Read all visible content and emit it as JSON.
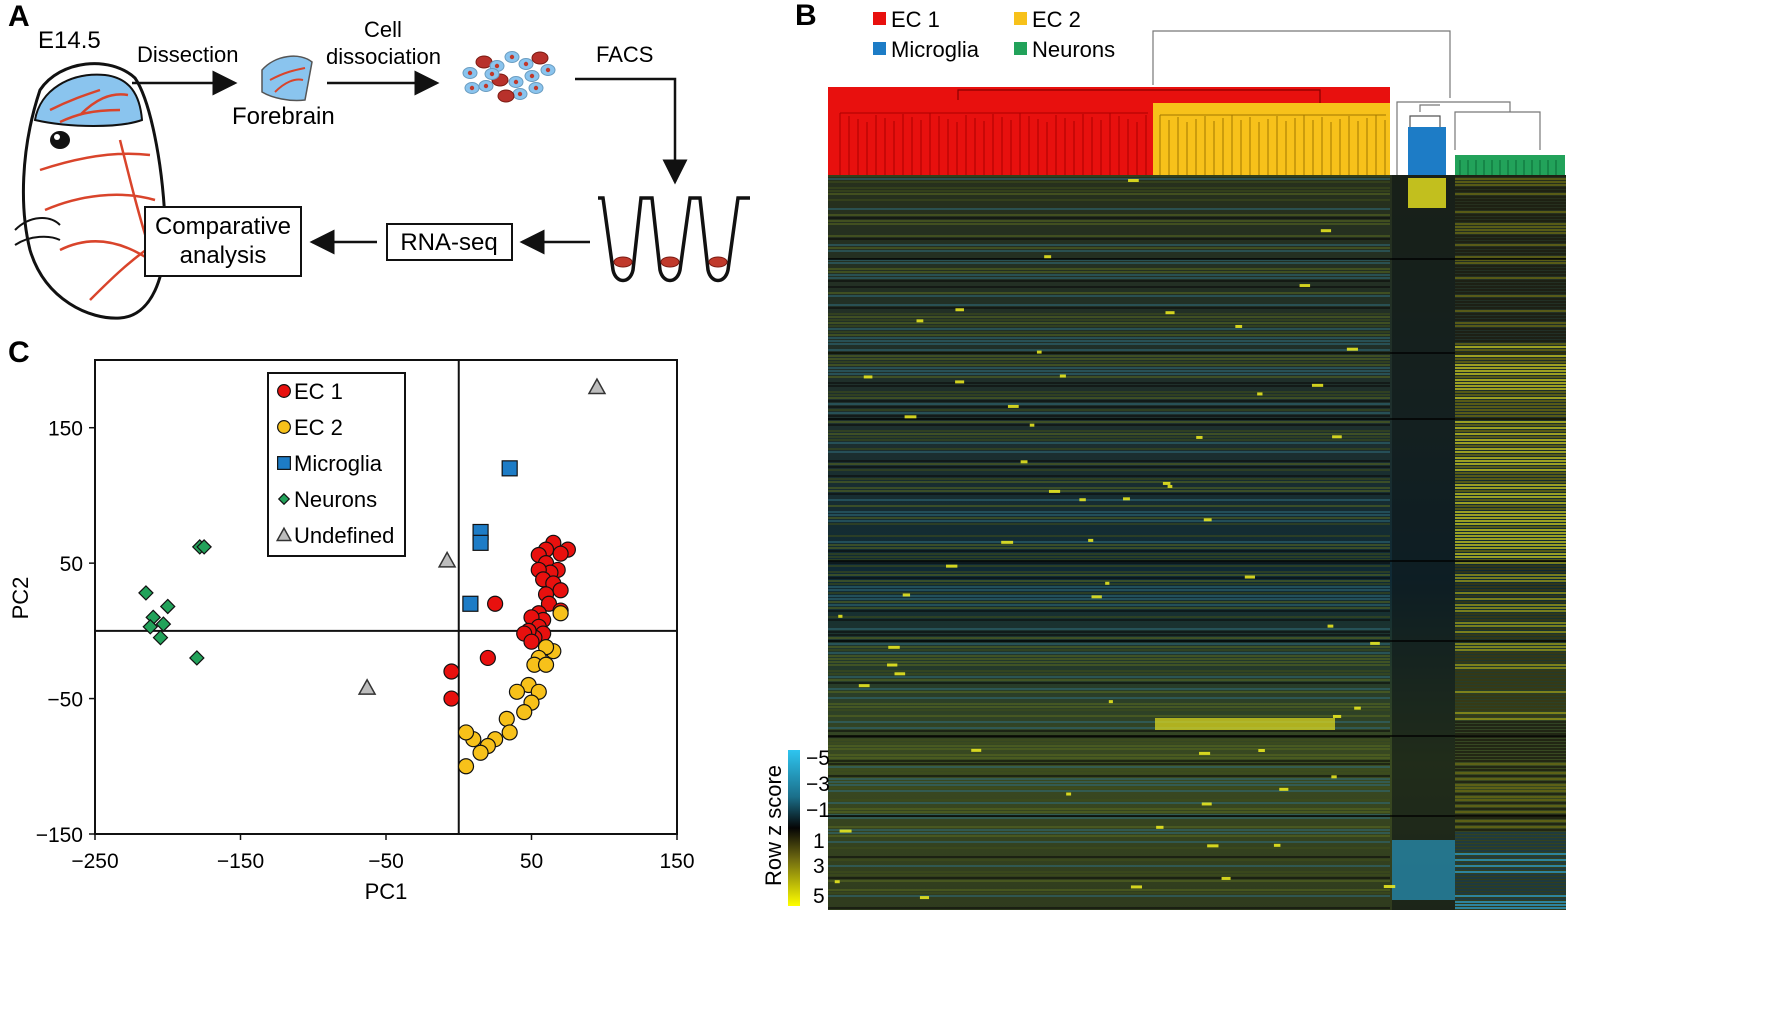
{
  "figure": {
    "panel_a": {
      "letter": "A",
      "age_label": "E14.5",
      "step_dissection": "Dissection",
      "forebrain_label": "Forebrain",
      "step_cell_line1": "Cell",
      "step_cell_line2": "dissociation",
      "step_facs": "FACS",
      "box_rnaseq": "RNA-seq",
      "box_comparative_line1": "Comparative",
      "box_comparative_line2": "analysis"
    },
    "panel_b": {
      "letter": "B",
      "legend": [
        "EC 1",
        "EC 2",
        "Microglia",
        "Neurons"
      ],
      "colorbar_title": "Row z score",
      "colorbar_ticks": [
        "−5",
        "−3",
        "−1",
        "1",
        "3",
        "5"
      ]
    },
    "panel_c": {
      "letter": "C"
    }
  },
  "colors": {
    "ec1": "#e8100e",
    "ec2": "#f7c11a",
    "microglia": "#1d7cc6",
    "neurons": "#22a25a",
    "undefined": "#bdbdbd",
    "diagram_red": "#d9442b",
    "brain_blue": "#8ac4ee"
  },
  "chart_data": {
    "type": "scatter",
    "xlabel": "PC1",
    "ylabel": "PC2",
    "xlim": [
      -250,
      150
    ],
    "ylim": [
      -150,
      200
    ],
    "xticks": [
      -250,
      -150,
      -50,
      50,
      150
    ],
    "yticks": [
      -150,
      -50,
      50,
      150
    ],
    "xtick_labels": [
      "−250",
      "−150",
      "−50",
      "50",
      "150"
    ],
    "ytick_labels": [
      "−150",
      "−50",
      "50",
      "150"
    ],
    "reference_lines": {
      "x": 0,
      "y": 0
    },
    "grid": false,
    "legend_position": "top-center",
    "series": [
      {
        "name": "EC 1",
        "marker": "circle",
        "color": "#e8100e",
        "points": [
          [
            65,
            65
          ],
          [
            75,
            60
          ],
          [
            70,
            57
          ],
          [
            60,
            60
          ],
          [
            55,
            56
          ],
          [
            60,
            50
          ],
          [
            68,
            45
          ],
          [
            63,
            43
          ],
          [
            55,
            45
          ],
          [
            58,
            38
          ],
          [
            65,
            35
          ],
          [
            70,
            30
          ],
          [
            60,
            27
          ],
          [
            62,
            20
          ],
          [
            70,
            15
          ],
          [
            55,
            13
          ],
          [
            58,
            8
          ],
          [
            50,
            10
          ],
          [
            55,
            3
          ],
          [
            58,
            -2
          ],
          [
            52,
            -5
          ],
          [
            48,
            0
          ],
          [
            45,
            -2
          ],
          [
            50,
            -8
          ],
          [
            25,
            20
          ],
          [
            20,
            -20
          ],
          [
            -5,
            -30
          ],
          [
            -5,
            -50
          ]
        ]
      },
      {
        "name": "EC 2",
        "marker": "circle",
        "color": "#f7c11a",
        "points": [
          [
            70,
            13
          ],
          [
            65,
            -15
          ],
          [
            60,
            -12
          ],
          [
            55,
            -20
          ],
          [
            52,
            -25
          ],
          [
            60,
            -25
          ],
          [
            48,
            -40
          ],
          [
            40,
            -45
          ],
          [
            55,
            -45
          ],
          [
            50,
            -53
          ],
          [
            45,
            -60
          ],
          [
            33,
            -65
          ],
          [
            25,
            -80
          ],
          [
            35,
            -75
          ],
          [
            20,
            -85
          ],
          [
            10,
            -80
          ],
          [
            15,
            -90
          ],
          [
            5,
            -75
          ],
          [
            5,
            -100
          ]
        ]
      },
      {
        "name": "Microglia",
        "marker": "square",
        "color": "#1d7cc6",
        "points": [
          [
            35,
            120
          ],
          [
            15,
            73
          ],
          [
            15,
            65
          ],
          [
            8,
            20
          ]
        ]
      },
      {
        "name": "Neurons",
        "marker": "diamond",
        "color": "#22a25a",
        "points": [
          [
            -178,
            62
          ],
          [
            -175,
            62
          ],
          [
            -215,
            28
          ],
          [
            -200,
            18
          ],
          [
            -210,
            10
          ],
          [
            -203,
            5
          ],
          [
            -212,
            3
          ],
          [
            -205,
            -5
          ],
          [
            -180,
            -20
          ]
        ]
      },
      {
        "name": "Undefined",
        "marker": "triangle",
        "color": "#bdbdbd",
        "points": [
          [
            95,
            180
          ],
          [
            -8,
            52
          ],
          [
            -63,
            -42
          ]
        ]
      }
    ]
  }
}
